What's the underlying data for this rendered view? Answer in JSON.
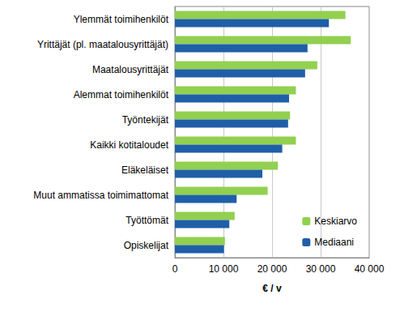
{
  "chart_data": {
    "type": "bar",
    "orientation": "horizontal",
    "categories": [
      "Ylemmät toimihenkilöt",
      "Yrittäjät (pl. maatalousyrittäjät)",
      "Maatalousyrittäjät",
      "Alemmat toimihenkilöt",
      "Työntekijät",
      "Kaikki kotitaloudet",
      "Eläkeläiset",
      "Muut ammatissa toimimattomat",
      "Työttömät",
      "Opiskelijat"
    ],
    "series": [
      {
        "name": "Keskiarvo",
        "color": "#92d050",
        "values": [
          35100,
          36200,
          29300,
          24900,
          23700,
          24900,
          21200,
          19100,
          12300,
          10300
        ]
      },
      {
        "name": "Mediaani",
        "color": "#1f5fa8",
        "values": [
          31700,
          27300,
          26800,
          23500,
          23300,
          22100,
          18000,
          12700,
          11200,
          10100
        ]
      }
    ],
    "xlabel": "€ / v",
    "xlim": [
      0,
      40000
    ],
    "xticks": [
      0,
      {
        "value": 10000,
        "label": "10 000"
      },
      {
        "value": 20000,
        "label": "20 000"
      },
      {
        "value": 30000,
        "label": "30 000"
      },
      {
        "value": 40000,
        "label": "40 000"
      }
    ],
    "grid": true,
    "legend": "lower right"
  }
}
